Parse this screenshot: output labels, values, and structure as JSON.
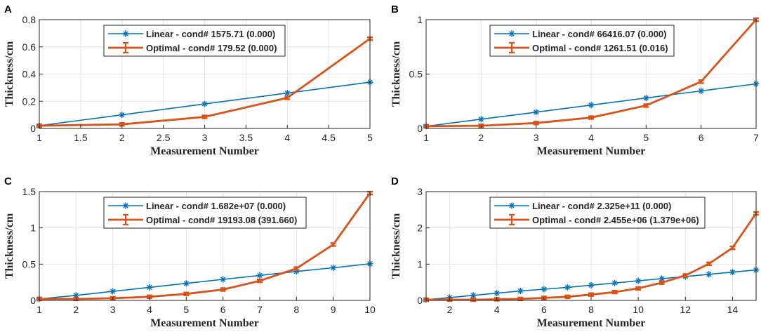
{
  "colors": {
    "linear": "#0072bd",
    "optimal": "#d95319"
  },
  "chart_data": [
    {
      "type": "line",
      "panel_label": "A",
      "xlabel": "Measurement Number",
      "ylabel": "Thickness/cm",
      "xlim": [
        1,
        5
      ],
      "ylim": [
        0,
        0.8
      ],
      "xticks": [
        1,
        1.5,
        2,
        2.5,
        3,
        3.5,
        4,
        4.5,
        5
      ],
      "xticklabels": [
        "1",
        "1.5",
        "2",
        "2.5",
        "3",
        "3.5",
        "4",
        "4.5",
        "5"
      ],
      "yticks": [
        0,
        0.2,
        0.4,
        0.6,
        0.8
      ],
      "yticklabels": [
        "0",
        "0.2",
        "0.4",
        "0.6",
        "0.8"
      ],
      "grid": true,
      "legend_position": "top-center",
      "series": [
        {
          "name": "Linear - cond# 1575.71 (0.000)",
          "marker": "asterisk",
          "x": [
            1,
            2,
            3,
            4,
            5
          ],
          "values": [
            0.02,
            0.1,
            0.18,
            0.26,
            0.34
          ]
        },
        {
          "name": "Optimal - cond# 179.52 (0.000)",
          "marker": "errorbar",
          "x": [
            1,
            2,
            3,
            4,
            5
          ],
          "values": [
            0.02,
            0.03,
            0.085,
            0.225,
            0.66
          ]
        }
      ]
    },
    {
      "type": "line",
      "panel_label": "B",
      "xlabel": "Measurement Number",
      "ylabel": "Thickness/cm",
      "xlim": [
        1,
        7
      ],
      "ylim": [
        0,
        1
      ],
      "xticks": [
        1,
        2,
        3,
        4,
        5,
        6,
        7
      ],
      "xticklabels": [
        "1",
        "2",
        "3",
        "4",
        "5",
        "6",
        "7"
      ],
      "yticks": [
        0,
        0.5,
        1
      ],
      "yticklabels": [
        "0",
        "0.5",
        "1"
      ],
      "grid": true,
      "legend_position": "top-center",
      "series": [
        {
          "name": "Linear - cond# 66416.07 (0.000)",
          "marker": "asterisk",
          "x": [
            1,
            2,
            3,
            4,
            5,
            6,
            7
          ],
          "values": [
            0.02,
            0.085,
            0.15,
            0.215,
            0.28,
            0.345,
            0.41
          ]
        },
        {
          "name": "Optimal - cond# 1261.51 (0.016)",
          "marker": "errorbar",
          "x": [
            1,
            2,
            3,
            4,
            5,
            6,
            7
          ],
          "values": [
            0.02,
            0.025,
            0.05,
            0.1,
            0.21,
            0.43,
            1.0
          ]
        }
      ]
    },
    {
      "type": "line",
      "panel_label": "C",
      "xlabel": "Measurement Number",
      "ylabel": "Thickness/cm",
      "xlim": [
        1,
        10
      ],
      "ylim": [
        0,
        1.5
      ],
      "xticks": [
        1,
        2,
        3,
        4,
        5,
        6,
        7,
        8,
        9,
        10
      ],
      "xticklabels": [
        "1",
        "2",
        "3",
        "4",
        "5",
        "6",
        "7",
        "8",
        "9",
        "10"
      ],
      "yticks": [
        0,
        0.5,
        1,
        1.5
      ],
      "yticklabels": [
        "0",
        "0.5",
        "1",
        "1.5"
      ],
      "grid": true,
      "legend_position": "top-center",
      "series": [
        {
          "name": "Linear - cond# 1.682e+07 (0.000)",
          "marker": "asterisk",
          "x": [
            1,
            2,
            3,
            4,
            5,
            6,
            7,
            8,
            9,
            10
          ],
          "values": [
            0.02,
            0.07,
            0.125,
            0.18,
            0.235,
            0.29,
            0.345,
            0.4,
            0.45,
            0.505
          ]
        },
        {
          "name": "Optimal - cond# 19193.08 (391.660)",
          "marker": "errorbar",
          "x": [
            1,
            2,
            3,
            4,
            5,
            6,
            7,
            8,
            9,
            10
          ],
          "values": [
            0.02,
            0.02,
            0.03,
            0.05,
            0.09,
            0.15,
            0.27,
            0.44,
            0.77,
            1.48
          ]
        }
      ]
    },
    {
      "type": "line",
      "panel_label": "D",
      "xlabel": "Measurement Number",
      "ylabel": "Thickness/cm",
      "xlim": [
        1,
        15
      ],
      "ylim": [
        0,
        3
      ],
      "xticks": [
        2,
        4,
        6,
        8,
        10,
        12,
        14
      ],
      "xticklabels": [
        "2",
        "4",
        "6",
        "8",
        "10",
        "12",
        "14"
      ],
      "yticks": [
        0,
        1,
        2,
        3
      ],
      "yticklabels": [
        "0",
        "1",
        "2",
        "3"
      ],
      "grid": true,
      "legend_position": "top-center",
      "series": [
        {
          "name": "Linear - cond# 2.325e+11 (0.000)",
          "marker": "asterisk",
          "x": [
            1,
            2,
            3,
            4,
            5,
            6,
            7,
            8,
            9,
            10,
            11,
            12,
            13,
            14,
            15
          ],
          "values": [
            0.02,
            0.08,
            0.14,
            0.2,
            0.26,
            0.31,
            0.36,
            0.42,
            0.48,
            0.54,
            0.6,
            0.66,
            0.72,
            0.78,
            0.84
          ]
        },
        {
          "name": "Optimal - cond# 2.455e+06 (1.379e+06)",
          "marker": "errorbar",
          "x": [
            1,
            2,
            3,
            4,
            5,
            6,
            7,
            8,
            9,
            10,
            11,
            12,
            13,
            14,
            15
          ],
          "values": [
            0.02,
            0.02,
            0.02,
            0.03,
            0.04,
            0.07,
            0.1,
            0.16,
            0.23,
            0.33,
            0.49,
            0.69,
            1.01,
            1.45,
            2.4
          ]
        }
      ]
    }
  ]
}
